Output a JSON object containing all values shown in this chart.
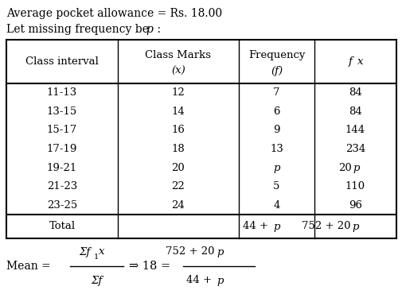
{
  "title_line1": "Average pocket allowance = Rs. 18.00",
  "title_line2_pre": "Let missing frequency be ",
  "title_line2_p": "p",
  "title_line2_post": " :",
  "rows": [
    [
      "11-13",
      "12",
      "7",
      "84"
    ],
    [
      "13-15",
      "14",
      "6",
      "84"
    ],
    [
      "15-17",
      "16",
      "9",
      "144"
    ],
    [
      "17-19",
      "18",
      "13",
      "234"
    ],
    [
      "19-21",
      "20",
      "p",
      "20p"
    ],
    [
      "21-23",
      "22",
      "5",
      "110"
    ],
    [
      "23-25",
      "24",
      "4",
      "96"
    ]
  ],
  "total_freq": "44 + p",
  "total_fx": "752 + 20p",
  "bg_color": "#ffffff",
  "text_color": "#000000"
}
